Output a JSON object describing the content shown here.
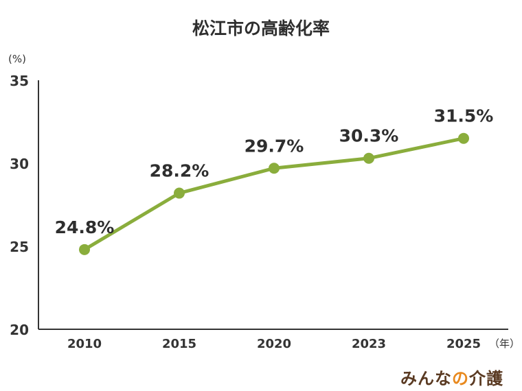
{
  "chart_data": {
    "type": "line",
    "title": "松江市の高齢化率",
    "ylabel": "(%)",
    "xlabel": "（年）",
    "categories": [
      "2010",
      "2015",
      "2020",
      "2023",
      "2025"
    ],
    "series": [
      {
        "values": [
          24.8,
          28.2,
          29.7,
          30.3,
          31.5
        ],
        "labels": [
          "24.8%",
          "28.2%",
          "29.7%",
          "30.3%",
          "31.5%"
        ],
        "color": "#8aad3c"
      }
    ],
    "ylim": [
      20,
      35
    ],
    "yticks": [
      "20",
      "25",
      "30",
      "35"
    ],
    "grid": false
  },
  "logo": {
    "text_main": "みんな",
    "text_accent": "の",
    "text_tail": "介護",
    "brand_color": "#5a3a22",
    "accent_color": "#e8891e"
  }
}
